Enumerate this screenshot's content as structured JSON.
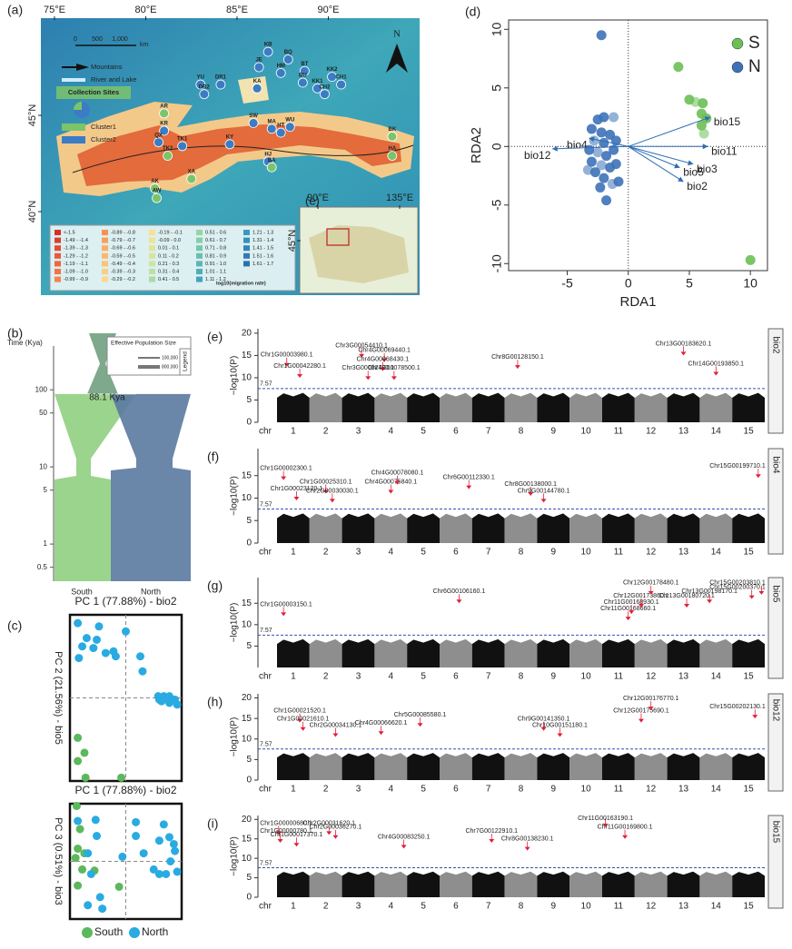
{
  "chart_data": [
    {
      "type": "map",
      "panel_label": "(a)",
      "xticks": [
        {
          "value": 75,
          "label": "75°E"
        },
        {
          "value": 80,
          "label": "80°E"
        },
        {
          "value": 85,
          "label": "85°E"
        },
        {
          "value": 90,
          "label": "90°E"
        }
      ],
      "yticks": [
        {
          "value": 45,
          "label": "45°N"
        },
        {
          "value": 40,
          "label": "40°N"
        }
      ],
      "scale_bar": [
        "0",
        "500",
        "1,000",
        "km"
      ],
      "north": "N",
      "legend": {
        "mountains": "Mountains",
        "river": "River and Lake",
        "sites_title": "Collection Sites",
        "clusters": [
          "Cluster1",
          "Cluster2"
        ]
      },
      "cluster_colors": [
        "#7cc46a",
        "#3b7cc4"
      ],
      "sites": [
        {
          "name": "KB",
          "lon": 86.7,
          "lat": 48.3,
          "cluster": 2
        },
        {
          "name": "BQ",
          "lon": 87.8,
          "lat": 47.9,
          "cluster": 2
        },
        {
          "name": "JE",
          "lon": 86.2,
          "lat": 47.5,
          "cluster": 2
        },
        {
          "name": "HM",
          "lon": 87.4,
          "lat": 47.2,
          "cluster": 2
        },
        {
          "name": "KA",
          "lon": 86.1,
          "lat": 46.4,
          "cluster": 2
        },
        {
          "name": "YU",
          "lon": 83.0,
          "lat": 46.6,
          "cluster": 2
        },
        {
          "name": "DR1",
          "lon": 84.1,
          "lat": 46.6,
          "cluster": 2
        },
        {
          "name": "DR2",
          "lon": 83.2,
          "lat": 46.1,
          "cluster": 2
        },
        {
          "name": "BT",
          "lon": 88.7,
          "lat": 47.3,
          "cluster": 2
        },
        {
          "name": "KK2",
          "lon": 90.2,
          "lat": 47.0,
          "cluster": 2
        },
        {
          "name": "BU",
          "lon": 88.6,
          "lat": 46.7,
          "cluster": 2
        },
        {
          "name": "KK1",
          "lon": 89.4,
          "lat": 46.4,
          "cluster": 2
        },
        {
          "name": "CH1",
          "lon": 90.7,
          "lat": 46.6,
          "cluster": 2
        },
        {
          "name": "CH2",
          "lon": 89.8,
          "lat": 46.1,
          "cluster": 2
        },
        {
          "name": "AR",
          "lon": 81.0,
          "lat": 45.1,
          "cluster": 1
        },
        {
          "name": "KR",
          "lon": 81.0,
          "lat": 44.2,
          "cluster": 2
        },
        {
          "name": "SW",
          "lon": 85.9,
          "lat": 44.6,
          "cluster": 2
        },
        {
          "name": "MA",
          "lon": 86.9,
          "lat": 44.3,
          "cluster": 2
        },
        {
          "name": "HT",
          "lon": 87.4,
          "lat": 44.1,
          "cluster": 2
        },
        {
          "name": "WU",
          "lon": 87.9,
          "lat": 44.4,
          "cluster": 2
        },
        {
          "name": "QX",
          "lon": 80.7,
          "lat": 43.6,
          "cluster": 2
        },
        {
          "name": "TK1",
          "lon": 82.0,
          "lat": 43.4,
          "cluster": 2
        },
        {
          "name": "TK2",
          "lon": 81.2,
          "lat": 42.9,
          "cluster": 1
        },
        {
          "name": "KY",
          "lon": 84.6,
          "lat": 43.5,
          "cluster": 2
        },
        {
          "name": "BK",
          "lon": 93.5,
          "lat": 43.9,
          "cluster": 1
        },
        {
          "name": "HA",
          "lon": 93.5,
          "lat": 42.9,
          "cluster": 1
        },
        {
          "name": "HJ",
          "lon": 86.7,
          "lat": 42.6,
          "cluster": 2
        },
        {
          "name": "BA",
          "lon": 86.9,
          "lat": 42.3,
          "cluster": 1
        },
        {
          "name": "XA",
          "lon": 82.5,
          "lat": 41.7,
          "cluster": 1
        },
        {
          "name": "AK",
          "lon": 80.5,
          "lat": 41.2,
          "cluster": 1
        },
        {
          "name": "AW",
          "lon": 80.6,
          "lat": 40.7,
          "cluster": 1
        }
      ],
      "migration_legend": {
        "title": "log10(migration rate)",
        "classes": [
          "<-1.5",
          "-1.49 - -1.4",
          "-1.39 - -1.3",
          "-1.29 - -1.2",
          "-1.19 - -1.1",
          "-1.09 - -1.0",
          "-0.99 - -0.9",
          "-0.89 - -0.8",
          "-0.79 - -0.7",
          "-0.69 - -0.6",
          "-0.59 - -0.5",
          "-0.49 - -0.4",
          "-0.39 - -0.3",
          "-0.29 - -0.2",
          "-0.19 - -0.1",
          "-0.09 - 0.0",
          "0.01 - 0.1",
          "0.11 - 0.2",
          "0.21 - 0.3",
          "0.31 - 0.4",
          "0.41 - 0.5",
          "0.51 - 0.6",
          "0.61 - 0.7",
          "0.71 - 0.8",
          "0.81 - 0.9",
          "0.91 - 1.0",
          "1.01 - 1.1",
          "1.11 - 1.2",
          "1.21 - 1.3",
          "1.31 - 1.4",
          "1.41 - 1.5",
          "1.51 - 1.6",
          "1.61 - 1.7"
        ]
      },
      "inset": {
        "label": "(e)",
        "xticks": [
          {
            "value": 90,
            "label": "90°E"
          },
          {
            "value": 135,
            "label": "135°E"
          }
        ],
        "yticks": [
          {
            "value": 45,
            "label": "45°N"
          }
        ]
      }
    },
    {
      "type": "population_history",
      "panel_label": "(b)",
      "y_label": "Time (Kya)",
      "log_y": true,
      "ylim": [
        0.33,
        540
      ],
      "yticks": [
        0.5,
        1,
        5,
        10,
        50,
        100
      ],
      "divergence": {
        "value": 88.1,
        "label": "88.1 Kya"
      },
      "ancestor_color": "#7ea98c",
      "series": [
        {
          "name": "South",
          "color": "#90cf80"
        },
        {
          "name": "North",
          "color": "#5a79a0"
        }
      ],
      "legend": {
        "title": "Effective Population Size",
        "labels": [
          "100,000",
          "800,000"
        ],
        "heading": "Legend"
      }
    },
    {
      "type": "scatter",
      "panel_label": "(c)",
      "title": "PC 1 (77.88%) - bio2",
      "y_label": "PC 2 (21.56%) - bio5",
      "xlim": [
        0,
        100
      ],
      "ylim": [
        0,
        100
      ],
      "series": [
        {
          "name": "South",
          "color": "#5cb85c",
          "x": [
            7,
            7,
            13,
            14,
            46
          ],
          "y": [
            26,
            12,
            17,
            2,
            2
          ]
        },
        {
          "name": "North",
          "color": "#29abe2",
          "x": [
            7,
            11,
            8,
            15,
            21,
            24,
            32,
            26,
            39,
            41,
            50,
            63,
            65,
            79,
            82,
            86,
            89,
            94,
            89,
            84,
            80,
            96
          ],
          "y": [
            95,
            81,
            74,
            86,
            80,
            85,
            77,
            93,
            78,
            75,
            90,
            75,
            66,
            51,
            48,
            50,
            47,
            49,
            51,
            51,
            49,
            46
          ]
        }
      ]
    },
    {
      "type": "scatter",
      "title": "PC 1 (77.88%) - bio2",
      "y_label": "PC 3 (0.51%) - bio3",
      "xlim": [
        0,
        100
      ],
      "ylim": [
        0,
        100
      ],
      "series": [
        {
          "color": "#5cb85c",
          "x": [
            6,
            9,
            7,
            5,
            13,
            11,
            7,
            22,
            44
          ],
          "y": [
            98,
            78,
            61,
            53,
            57,
            43,
            29,
            42,
            28
          ]
        },
        {
          "color": "#29abe2",
          "x": [
            7,
            23,
            24,
            16,
            19,
            27,
            16,
            29,
            47,
            59,
            59,
            66,
            75,
            80,
            84,
            89,
            93,
            94,
            80,
            86,
            96,
            90
          ],
          "y": [
            85,
            86,
            72,
            57,
            39,
            19,
            12,
            9,
            54,
            84,
            72,
            57,
            43,
            68,
            82,
            71,
            65,
            59,
            39,
            39,
            41,
            50
          ]
        }
      ]
    },
    {
      "type": "biplot",
      "panel_label": "(d)",
      "x_label": "RDA1",
      "y_label": "RDA2",
      "xlim": [
        -9.8,
        11.4
      ],
      "ylim": [
        -10.6,
        10.8
      ],
      "xticks": [
        -5,
        0,
        5,
        10
      ],
      "yticks": [
        -10,
        -5,
        0,
        5,
        10
      ],
      "legend_position": "top-right",
      "series": [
        {
          "name": "S",
          "color": "#6cbf55",
          "x": [
            4.1,
            10.0,
            5.0,
            5.5,
            6.1,
            6.0,
            6.4,
            6.2,
            6.0
          ],
          "y": [
            6.8,
            -9.7,
            4.0,
            3.8,
            3.7,
            2.8,
            2.4,
            1.1,
            1.8
          ]
        },
        {
          "name": "N",
          "color": "#3d72b8",
          "x": [
            -2.2,
            -2.5,
            -2.0,
            -1.2,
            -3.0,
            -2.2,
            -1.5,
            -2.8,
            -2.0,
            -1.0,
            -3.2,
            -2.5,
            -1.8,
            -1.2,
            -3.0,
            -2.2,
            -1.5,
            -2.7,
            -2.0,
            -1.3,
            -2.3,
            -1.8,
            -0.8,
            -3.3,
            -1.0
          ],
          "y": [
            9.5,
            2.3,
            2.5,
            2.5,
            1.5,
            1.2,
            1.0,
            0.5,
            0.3,
            0.5,
            -0.3,
            -0.5,
            -0.8,
            -0.3,
            -1.3,
            -1.6,
            -1.8,
            -2.2,
            -2.7,
            -3.2,
            -3.5,
            -4.6,
            -3.0,
            -2.0,
            -1.5
          ]
        }
      ],
      "arrows": {
        "color": "#2f6db5",
        "names": [
          "bio15",
          "bio11",
          "bio3",
          "bio5",
          "bio2",
          "bio4",
          "bio12"
        ],
        "x": [
          6.7,
          6.5,
          5.3,
          4.2,
          4.5,
          -3.2,
          -6.2
        ],
        "y": [
          2.5,
          0.0,
          -1.5,
          -1.8,
          -3.0,
          0.7,
          -0.2
        ]
      }
    },
    {
      "type": "manhattan",
      "panel_label": "(e)",
      "trait": "bio2",
      "y_label": "−log10(P)",
      "x_label": "chr",
      "ylim": [
        0,
        21
      ],
      "yticks": [
        0,
        5,
        10,
        15,
        20
      ],
      "xlim": [
        0,
        15
      ],
      "threshold": 7.57,
      "chromosomes": [
        "1",
        "2",
        "3",
        "4",
        "5",
        "6",
        "7",
        "8",
        "9",
        "10",
        "11",
        "12",
        "13",
        "14",
        "15"
      ],
      "colors": [
        "#111111",
        "#8e8e8e"
      ],
      "threshold_color": "#3a4fb0",
      "hit_color": "#e0203a",
      "peaks": {
        "names": [
          "Chr1G00003980.1",
          "Chr1G00042280.1",
          "Chr3G00054410.1",
          "Chr3G00062780.1",
          "Chr4G00069440.1",
          "Chr4G00068430.1",
          "Chr4G00078500.1",
          "Chr8G00128150.1",
          "Chr13G00183620.1",
          "Chr14G00193850.1"
        ],
        "x": [
          0.3,
          0.7,
          2.6,
          2.8,
          3.3,
          3.25,
          3.6,
          7.4,
          12.5,
          13.5
        ],
        "values": [
          12.5,
          10,
          14.5,
          9.5,
          13.5,
          11.5,
          9.5,
          12,
          15,
          10.5
        ]
      }
    },
    {
      "type": "manhattan",
      "panel_label": "(f)",
      "trait": "bio4",
      "y_label": "−log10(P)",
      "x_label": "chr",
      "ylim": [
        0,
        21
      ],
      "yticks": [
        0,
        5,
        10,
        15
      ],
      "xlim": [
        0,
        15
      ],
      "threshold": 7.57,
      "chromosomes": [
        "1",
        "2",
        "3",
        "4",
        "5",
        "6",
        "7",
        "8",
        "9",
        "10",
        "11",
        "12",
        "13",
        "14",
        "15"
      ],
      "colors": [
        "#111111",
        "#8e8e8e"
      ],
      "threshold_color": "#3a4fb0",
      "hit_color": "#e0203a",
      "peaks": {
        "names": [
          "Chr1G00002300.1",
          "Chr1G00023120.1",
          "Chr1G00025310.1",
          "Chr2G00030030.1",
          "Chr4G00075840.1",
          "Chr4G00078080.1",
          "Chr6G00112330.1",
          "Chr8G00138000.1",
          "Chr9G00144780.1",
          "Chr15G00199710.1"
        ],
        "x": [
          0.2,
          0.6,
          1.5,
          1.7,
          3.5,
          3.7,
          5.9,
          7.8,
          8.2,
          14.8
        ],
        "values": [
          14,
          9.5,
          11,
          9,
          11,
          13,
          12,
          10.5,
          9,
          14.5
        ]
      }
    },
    {
      "type": "manhattan",
      "panel_label": "(g)",
      "trait": "bio5",
      "y_label": "−log10(P)",
      "x_label": "chr",
      "ylim": [
        0,
        21
      ],
      "yticks": [
        5,
        10,
        15
      ],
      "xlim": [
        0,
        15
      ],
      "threshold": 7.57,
      "chromosomes": [
        "1",
        "2",
        "3",
        "4",
        "5",
        "6",
        "7",
        "8",
        "9",
        "10",
        "11",
        "12",
        "13",
        "14",
        "15"
      ],
      "colors": [
        "#111111",
        "#8e8e8e"
      ],
      "threshold_color": "#3a4fb0",
      "hit_color": "#e0203a",
      "peaks": {
        "names": [
          "Chr1G00003150.1",
          "Chr6G00106160.1",
          "Chr11G00168660.1",
          "Chr11G00168930.1",
          "Chr12G00173860.1",
          "Chr12G00178480.1",
          "Chr13G00180720.1",
          "Chr13G00198170.1",
          "Chr15G00200370.1",
          "Chr15G00203810.1"
        ],
        "x": [
          0.2,
          5.6,
          10.8,
          10.9,
          11.2,
          11.5,
          12.6,
          13.3,
          14.6,
          14.9
        ],
        "values": [
          12,
          15,
          11,
          12.5,
          14,
          17,
          14,
          15,
          16,
          17
        ]
      }
    },
    {
      "type": "manhattan",
      "panel_label": "(h)",
      "trait": "bio12",
      "y_label": "−log10(P)",
      "x_label": "chr",
      "ylim": [
        0,
        21
      ],
      "yticks": [
        0,
        5,
        10,
        15,
        20
      ],
      "xlim": [
        0,
        15
      ],
      "threshold": 7.57,
      "chromosomes": [
        "1",
        "2",
        "3",
        "4",
        "5",
        "6",
        "7",
        "8",
        "9",
        "10",
        "11",
        "12",
        "13",
        "14",
        "15"
      ],
      "colors": [
        "#111111",
        "#8e8e8e"
      ],
      "threshold_color": "#3a4fb0",
      "hit_color": "#e0203a",
      "peaks": {
        "names": [
          "Chr1G00021520.1",
          "Chr1G00021610.1",
          "Chr2G00034130.1",
          "Chr4G00066620.1",
          "Chr5G00085580.1",
          "Chr9G00141350.1",
          "Chr10G00151180.1",
          "Chr12G00175690.1",
          "Chr12G00176770.1",
          "Chr15G00202130.1"
        ],
        "x": [
          0.7,
          0.8,
          1.8,
          3.2,
          4.4,
          8.2,
          8.7,
          11.2,
          11.5,
          14.7
        ],
        "values": [
          14,
          12,
          10.5,
          11,
          13,
          12,
          10.5,
          14,
          17,
          15
        ]
      }
    },
    {
      "type": "manhattan",
      "panel_label": "(i)",
      "trait": "bio15",
      "y_label": "−log10(P)",
      "x_label": "chr",
      "ylim": [
        0,
        21
      ],
      "yticks": [
        0,
        5,
        10,
        15,
        20
      ],
      "xlim": [
        0,
        15
      ],
      "threshold": 7.57,
      "chromosomes": [
        "1",
        "2",
        "3",
        "4",
        "5",
        "6",
        "7",
        "8",
        "9",
        "10",
        "11",
        "12",
        "13",
        "14",
        "15"
      ],
      "colors": [
        "#111111",
        "#8e8e8e"
      ],
      "threshold_color": "#3a4fb0",
      "hit_color": "#e0203a",
      "peaks": {
        "names": [
          "Chr1G00000680.1",
          "Chr1G00000780.1",
          "Chr1G00017370.1",
          "Chr2G00031620.1",
          "Chr2G00036270.1",
          "Chr4G00083250.1",
          "Chr7G00122910.1",
          "Chr8G00138230.1",
          "Chr11G00163190.1",
          "Chr11G00169800.1"
        ],
        "x": [
          0.05,
          0.1,
          0.6,
          1.6,
          1.8,
          3.9,
          6.6,
          7.7,
          10.1,
          10.7
        ],
        "values": [
          16,
          14,
          13,
          16,
          15,
          12.5,
          14,
          12,
          18,
          15
        ]
      }
    }
  ]
}
